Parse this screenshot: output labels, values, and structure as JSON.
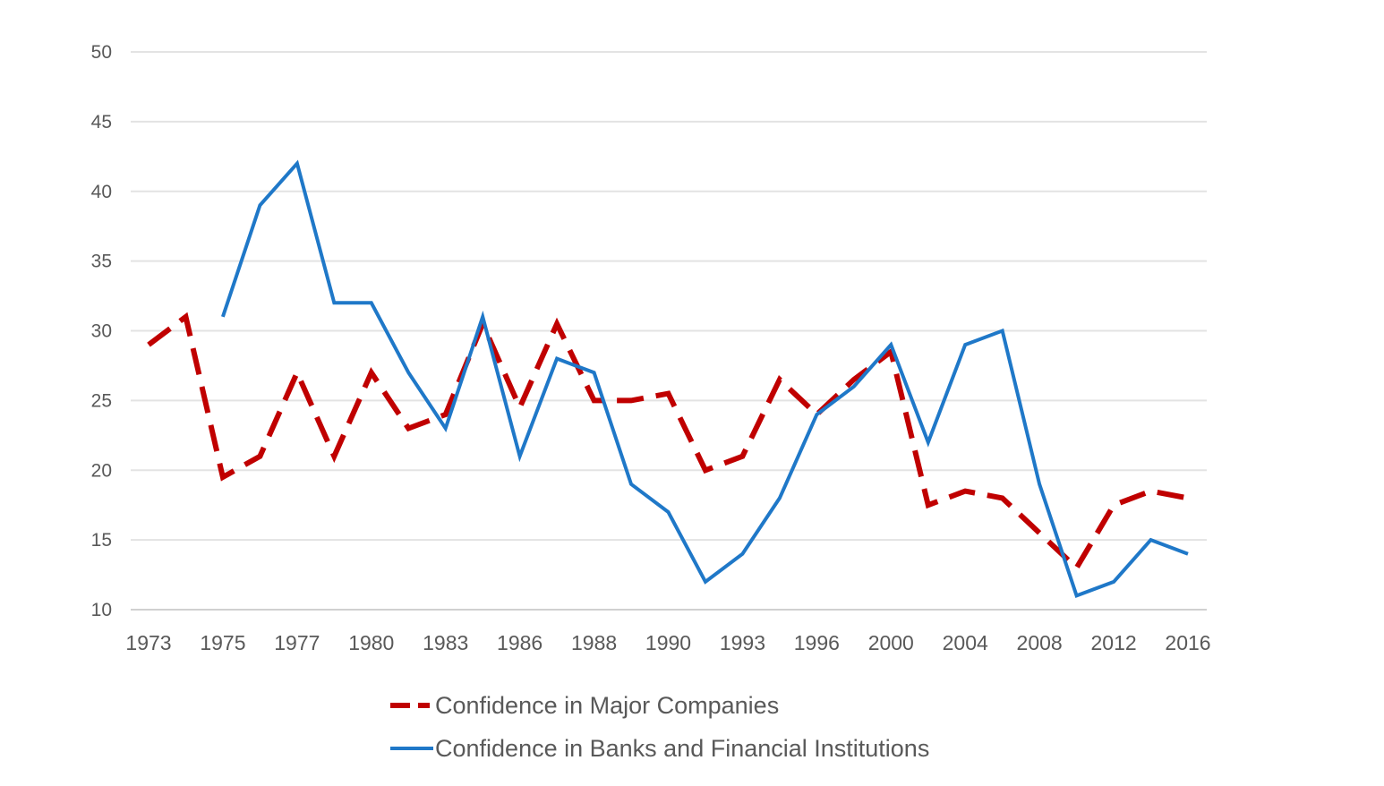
{
  "chart_data": {
    "type": "line",
    "x": [
      "1973",
      "1974",
      "1975",
      "1976",
      "1977",
      "1978",
      "1980",
      "1982",
      "1983",
      "1984",
      "1986",
      "1987",
      "1988",
      "1989",
      "1990",
      "1991",
      "1993",
      "1994",
      "1996",
      "1998",
      "2000",
      "2002",
      "2004",
      "2006",
      "2008",
      "2010",
      "2012",
      "2014",
      "2016"
    ],
    "xtick_labels": [
      "1973",
      "1975",
      "1977",
      "1980",
      "1983",
      "1986",
      "1988",
      "1990",
      "1993",
      "1996",
      "2000",
      "2004",
      "2008",
      "2012",
      "2016"
    ],
    "series": [
      {
        "name": "Confidence in Major Companies",
        "color": "#C00000",
        "style": "dashed",
        "values": [
          29,
          31,
          19.5,
          21,
          27,
          21,
          27,
          23,
          24,
          30.5,
          24.5,
          30.5,
          25,
          25,
          25.5,
          20,
          21,
          26.5,
          24,
          26.5,
          28.5,
          17.5,
          18.5,
          18,
          15.5,
          13,
          17.5,
          18.5,
          18
        ]
      },
      {
        "name": "Confidence in Banks and Financial Institutions",
        "color": "#1F78C8",
        "style": "solid",
        "values": [
          null,
          null,
          31,
          39,
          42,
          32,
          32,
          27,
          23,
          31,
          21,
          28,
          27,
          19,
          17,
          12,
          14,
          18,
          24,
          26,
          29,
          22,
          29,
          30,
          19,
          11,
          12,
          15,
          14
        ]
      }
    ],
    "yticks": [
      10,
      15,
      20,
      25,
      30,
      35,
      40,
      45,
      50
    ],
    "ylim": [
      10,
      50
    ],
    "grid": true,
    "legend_position": "bottom"
  },
  "legend": {
    "items": [
      {
        "label": "Confidence in Major Companies"
      },
      {
        "label": "Confidence in Banks and Financial Institutions"
      }
    ]
  }
}
